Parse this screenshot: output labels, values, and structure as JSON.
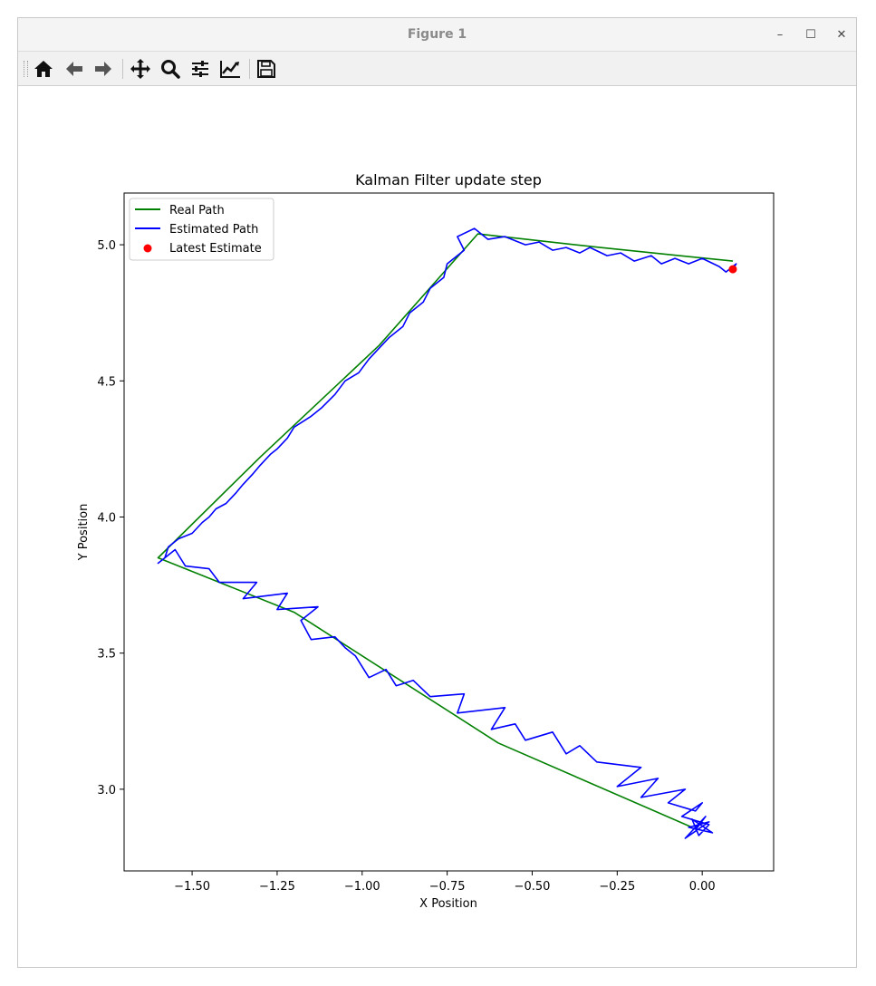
{
  "window": {
    "title": "Figure 1",
    "minimize_label": "–",
    "maximize_label": "☐",
    "close_label": "✕"
  },
  "toolbar": {
    "items": [
      {
        "name": "home-icon",
        "tooltip": "Home"
      },
      {
        "name": "back-icon",
        "tooltip": "Back"
      },
      {
        "name": "forward-icon",
        "tooltip": "Forward"
      },
      {
        "name": "pan-icon",
        "tooltip": "Pan"
      },
      {
        "name": "zoom-icon",
        "tooltip": "Zoom"
      },
      {
        "name": "subplots-icon",
        "tooltip": "Subplots"
      },
      {
        "name": "customize-icon",
        "tooltip": "Customize"
      },
      {
        "name": "save-icon",
        "tooltip": "Save"
      }
    ]
  },
  "colors": {
    "real_path": "#008000",
    "estimated_path": "#0000ff",
    "latest_estimate": "#ff0000"
  },
  "chart_data": {
    "type": "line",
    "title": "Kalman Filter update step",
    "xlabel": "X Position",
    "ylabel": "Y Position",
    "xlim": [
      -1.7,
      0.21
    ],
    "ylim": [
      2.7,
      5.19
    ],
    "xticks": [
      -1.5,
      -1.25,
      -1.0,
      -0.75,
      -0.5,
      -0.25,
      0.0
    ],
    "xtick_labels": [
      "−1.50",
      "−1.25",
      "−1.00",
      "−0.75",
      "−0.50",
      "−0.25",
      "0.00"
    ],
    "yticks": [
      3.0,
      3.5,
      4.0,
      4.5,
      5.0
    ],
    "ytick_labels": [
      "3.0",
      "3.5",
      "4.0",
      "4.5",
      "5.0"
    ],
    "grid": false,
    "legend_position": "upper left",
    "legend": [
      "Real Path",
      "Estimated Path",
      "Latest Estimate"
    ],
    "series": [
      {
        "name": "Real Path",
        "kind": "line",
        "x": [
          -0.03,
          -0.6,
          -1.2,
          -1.6,
          -1.3,
          -0.95,
          -0.66,
          -0.3,
          0.09
        ],
        "y": [
          2.86,
          3.17,
          3.65,
          3.85,
          4.22,
          4.63,
          5.04,
          4.99,
          4.94
        ]
      },
      {
        "name": "Estimated Path",
        "kind": "line",
        "x": [
          -0.02,
          0.01,
          -0.05,
          0.02,
          -0.04,
          0.03,
          -0.03,
          -0.01,
          0.02,
          -0.06,
          0.0,
          -0.02,
          -0.1,
          -0.05,
          -0.18,
          -0.13,
          -0.25,
          -0.18,
          -0.31,
          -0.36,
          -0.4,
          -0.44,
          -0.52,
          -0.55,
          -0.62,
          -0.58,
          -0.72,
          -0.7,
          -0.8,
          -0.85,
          -0.9,
          -0.93,
          -0.98,
          -1.02,
          -1.05,
          -1.08,
          -1.15,
          -1.18,
          -1.13,
          -1.25,
          -1.22,
          -1.35,
          -1.31,
          -1.42,
          -1.45,
          -1.52,
          -1.55,
          -1.6,
          -1.58,
          -1.57,
          -1.54,
          -1.5,
          -1.47,
          -1.45,
          -1.43,
          -1.4,
          -1.37,
          -1.35,
          -1.32,
          -1.3,
          -1.27,
          -1.25,
          -1.22,
          -1.2,
          -1.15,
          -1.12,
          -1.08,
          -1.05,
          -1.01,
          -0.98,
          -0.95,
          -0.92,
          -0.88,
          -0.86,
          -0.82,
          -0.8,
          -0.76,
          -0.75,
          -0.7,
          -0.72,
          -0.67,
          -0.63,
          -0.58,
          -0.52,
          -0.48,
          -0.44,
          -0.4,
          -0.36,
          -0.33,
          -0.28,
          -0.24,
          -0.2,
          -0.15,
          -0.12,
          -0.08,
          -0.04,
          0.0,
          0.05,
          0.07,
          0.1,
          0.09
        ],
        "y": [
          2.85,
          2.9,
          2.82,
          2.88,
          2.86,
          2.84,
          2.89,
          2.83,
          2.87,
          2.9,
          2.95,
          2.92,
          2.95,
          3.0,
          2.97,
          3.04,
          3.01,
          3.08,
          3.1,
          3.16,
          3.13,
          3.21,
          3.18,
          3.24,
          3.22,
          3.3,
          3.28,
          3.35,
          3.34,
          3.4,
          3.38,
          3.44,
          3.41,
          3.49,
          3.52,
          3.56,
          3.55,
          3.62,
          3.67,
          3.66,
          3.72,
          3.7,
          3.76,
          3.76,
          3.81,
          3.82,
          3.88,
          3.83,
          3.85,
          3.89,
          3.92,
          3.94,
          3.98,
          4.0,
          4.03,
          4.05,
          4.09,
          4.12,
          4.16,
          4.19,
          4.23,
          4.25,
          4.29,
          4.33,
          4.37,
          4.4,
          4.45,
          4.5,
          4.53,
          4.58,
          4.62,
          4.66,
          4.7,
          4.75,
          4.79,
          4.84,
          4.88,
          4.93,
          4.98,
          5.03,
          5.06,
          5.02,
          5.03,
          5.0,
          5.01,
          4.98,
          4.99,
          4.97,
          4.99,
          4.96,
          4.97,
          4.94,
          4.96,
          4.93,
          4.95,
          4.93,
          4.95,
          4.92,
          4.9,
          4.93,
          4.91
        ]
      },
      {
        "name": "Latest Estimate",
        "kind": "scatter",
        "x": [
          0.09
        ],
        "y": [
          4.91
        ]
      }
    ]
  }
}
